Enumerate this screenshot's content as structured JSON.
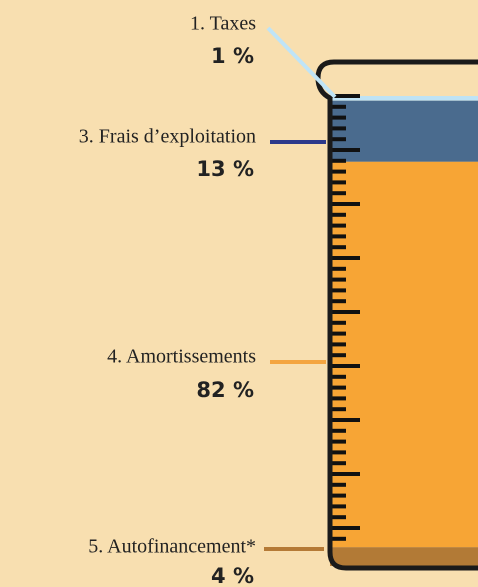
{
  "chart_data": {
    "type": "stacked_bar",
    "series": [
      {
        "name": "1. Taxes",
        "color": "#bfe3f5",
        "values": [
          1
        ],
        "value_labels": [
          "1 %"
        ]
      },
      {
        "name": "3. Frais d’exploitation",
        "color": "#4a6b8e",
        "values": [
          13
        ],
        "value_labels": [
          "13 %"
        ]
      },
      {
        "name": "4. Amortissements",
        "color": "#f7a535",
        "values": [
          82
        ],
        "value_labels": [
          "82 %"
        ]
      },
      {
        "name": "5. Autofinancement*",
        "color": "#b27a36",
        "values": [
          4
        ],
        "value_labels": [
          "4 %"
        ]
      }
    ]
  }
}
